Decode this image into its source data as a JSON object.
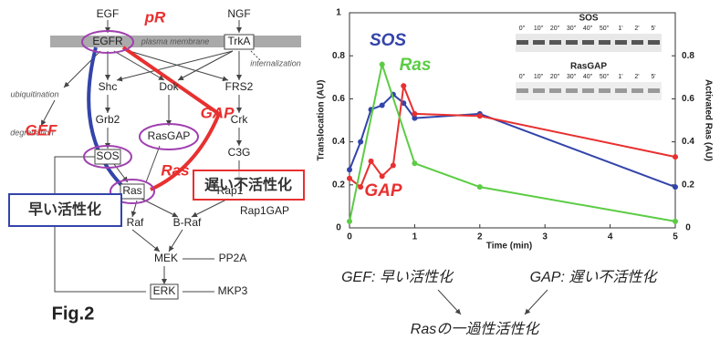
{
  "diagram": {
    "nodes": [
      "EGF",
      "NGF",
      "pR",
      "EGFR",
      "plasma membrane",
      "TrkA",
      "ubiquitination",
      "degradation",
      "internalization",
      "Shc",
      "Dok",
      "FRS2",
      "Grb2",
      "Crk",
      "RasGAP",
      "C3G",
      "GEF",
      "GAP",
      "SOS",
      "Ras",
      "Ras",
      "Rap1",
      "Rap1GAP",
      "Raf",
      "B-Raf",
      "MEK",
      "PP2A",
      "ERK",
      "MKP3"
    ],
    "slow_inactivation": "遅い不活性化",
    "fast_activation": "早い活性化",
    "figure_label": "Fig.2"
  },
  "captions": {
    "gef": "GEF: 早い活性化",
    "gap": "GAP: 遅い不活性化",
    "result": "Rasの一過性活性化"
  },
  "chart_data": {
    "type": "line",
    "xlabel": "Time (min)",
    "ylabel": "Translocation (AU)",
    "y2label": "Activated Ras (AU)",
    "xlim": [
      0,
      5
    ],
    "xticks": [
      0,
      1,
      2,
      3,
      4,
      5
    ],
    "ylim": [
      0,
      1
    ],
    "yticks": [
      0,
      0.2,
      0.4,
      0.6,
      0.8,
      1
    ],
    "y2lim": [
      0,
      1
    ],
    "y2ticks": [
      0,
      0.2,
      0.4,
      0.6,
      0.8
    ],
    "series": [
      {
        "name": "SOS",
        "color": "#3344aa",
        "x": [
          0,
          0.17,
          0.33,
          0.5,
          0.67,
          0.83,
          1,
          2,
          5
        ],
        "values": [
          0.27,
          0.4,
          0.55,
          0.57,
          0.62,
          0.58,
          0.51,
          0.53,
          0.19
        ]
      },
      {
        "name": "GAP",
        "color": "#e83030",
        "x": [
          0,
          0.17,
          0.33,
          0.5,
          0.67,
          0.83,
          1,
          2,
          5
        ],
        "values": [
          0.23,
          0.19,
          0.31,
          0.24,
          0.29,
          0.66,
          0.53,
          0.52,
          0.33
        ]
      },
      {
        "name": "Ras",
        "color": "#5ccc44",
        "axis": "y2",
        "x": [
          0,
          0.5,
          1,
          2,
          5
        ],
        "values": [
          0.03,
          0.76,
          0.3,
          0.19,
          0.03
        ]
      }
    ],
    "inset": {
      "titles": [
        "SOS",
        "RasGAP"
      ],
      "lanes": [
        "0\"",
        "10\"",
        "20\"",
        "30\"",
        "40\"",
        "50\"",
        "1'",
        "2'",
        "5'"
      ]
    }
  }
}
